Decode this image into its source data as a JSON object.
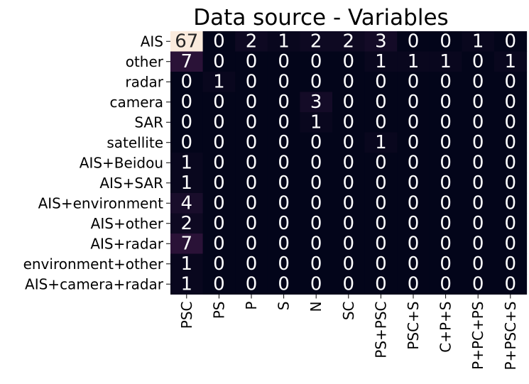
{
  "chart_data": {
    "type": "heatmap",
    "title": "Data source - Variables",
    "rows": [
      "AIS",
      "other",
      "radar",
      "camera",
      "SAR",
      "satellite",
      "AIS+Beidou",
      "AIS+SAR",
      "AIS+environment",
      "AIS+other",
      "AIS+radar",
      "environment+other",
      "AIS+camera+radar"
    ],
    "columns": [
      "PSC",
      "PS",
      "P",
      "S",
      "N",
      "SC",
      "PS+PSC",
      "PSC+S",
      "C+P+S",
      "P+PC+PS",
      "P+PSC+S"
    ],
    "values": [
      [
        67,
        0,
        2,
        1,
        2,
        2,
        3,
        0,
        0,
        1,
        0
      ],
      [
        7,
        0,
        0,
        0,
        0,
        0,
        1,
        1,
        1,
        0,
        1
      ],
      [
        0,
        1,
        0,
        0,
        0,
        0,
        0,
        0,
        0,
        0,
        0
      ],
      [
        0,
        0,
        0,
        0,
        3,
        0,
        0,
        0,
        0,
        0,
        0
      ],
      [
        0,
        0,
        0,
        0,
        1,
        0,
        0,
        0,
        0,
        0,
        0
      ],
      [
        0,
        0,
        0,
        0,
        0,
        0,
        1,
        0,
        0,
        0,
        0
      ],
      [
        1,
        0,
        0,
        0,
        0,
        0,
        0,
        0,
        0,
        0,
        0
      ],
      [
        1,
        0,
        0,
        0,
        0,
        0,
        0,
        0,
        0,
        0,
        0
      ],
      [
        4,
        0,
        0,
        0,
        0,
        0,
        0,
        0,
        0,
        0,
        0
      ],
      [
        2,
        0,
        0,
        0,
        0,
        0,
        0,
        0,
        0,
        0,
        0
      ],
      [
        7,
        0,
        0,
        0,
        0,
        0,
        0,
        0,
        0,
        0,
        0
      ],
      [
        1,
        0,
        0,
        0,
        0,
        0,
        0,
        0,
        0,
        0,
        0
      ],
      [
        1,
        0,
        0,
        0,
        0,
        0,
        0,
        0,
        0,
        0,
        0
      ]
    ],
    "color_range": [
      0,
      67
    ],
    "colormap": "rocket",
    "colorbar": false,
    "annotations": true
  }
}
